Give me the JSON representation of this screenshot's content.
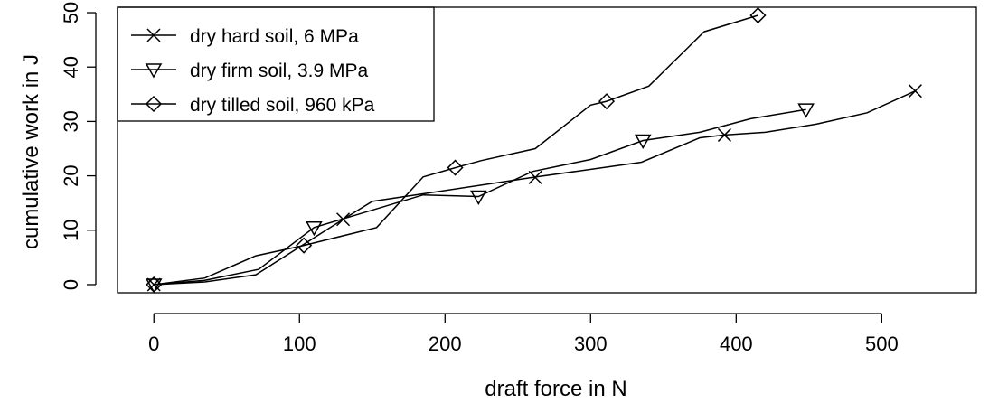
{
  "chart_data": {
    "type": "line",
    "xlabel": "draft force in N",
    "ylabel": "cumulative work in J",
    "xlim": [
      -25,
      565
    ],
    "ylim": [
      -1.5,
      51
    ],
    "x_ticks": [
      0,
      100,
      200,
      300,
      400,
      500
    ],
    "y_ticks": [
      0,
      10,
      20,
      30,
      40,
      50
    ],
    "grid": false,
    "legend_position": "top-left",
    "series": [
      {
        "name": "dry hard soil, 6 MPa",
        "marker": "x",
        "points": [
          [
            0,
            0
          ],
          [
            35,
            0.5
          ],
          [
            70,
            1.8
          ],
          [
            130,
            12
          ],
          [
            150,
            15.3
          ],
          [
            260,
            19.7
          ],
          [
            335,
            22.5
          ],
          [
            375,
            27
          ],
          [
            392,
            27.5
          ],
          [
            420,
            28
          ],
          [
            455,
            29.5
          ],
          [
            490,
            31.6
          ],
          [
            523,
            35.6
          ]
        ],
        "marker_points": [
          [
            0,
            0
          ],
          [
            130,
            12
          ],
          [
            262,
            19.7
          ],
          [
            392,
            27.5
          ],
          [
            523,
            35.6
          ]
        ]
      },
      {
        "name": "dry firm soil,  3.9 MPa",
        "marker": "triangle-down",
        "points": [
          [
            0,
            0
          ],
          [
            35,
            0.8
          ],
          [
            72,
            2.8
          ],
          [
            110,
            10.5
          ],
          [
            185,
            16.5
          ],
          [
            223,
            16.2
          ],
          [
            260,
            20.8
          ],
          [
            300,
            23
          ],
          [
            336,
            26.5
          ],
          [
            375,
            28
          ],
          [
            410,
            30.5
          ],
          [
            448,
            32.2
          ]
        ],
        "marker_points": [
          [
            0,
            0
          ],
          [
            110,
            10.5
          ],
          [
            223,
            16.2
          ],
          [
            336,
            26.5
          ],
          [
            448,
            32.2
          ]
        ]
      },
      {
        "name": "dry tilled soil, 960 kPa",
        "marker": "diamond",
        "points": [
          [
            0,
            0
          ],
          [
            35,
            1.2
          ],
          [
            70,
            5.3
          ],
          [
            103,
            7.2
          ],
          [
            153,
            10.5
          ],
          [
            185,
            19.8
          ],
          [
            207,
            21.5
          ],
          [
            225,
            22.8
          ],
          [
            262,
            25
          ],
          [
            300,
            33
          ],
          [
            311,
            33.7
          ],
          [
            340,
            36.5
          ],
          [
            378,
            46.5
          ],
          [
            415,
            49.5
          ]
        ],
        "marker_points": [
          [
            0,
            0
          ],
          [
            103,
            7.2
          ],
          [
            207,
            21.5
          ],
          [
            311,
            33.7
          ],
          [
            415,
            49.5
          ]
        ]
      }
    ]
  }
}
